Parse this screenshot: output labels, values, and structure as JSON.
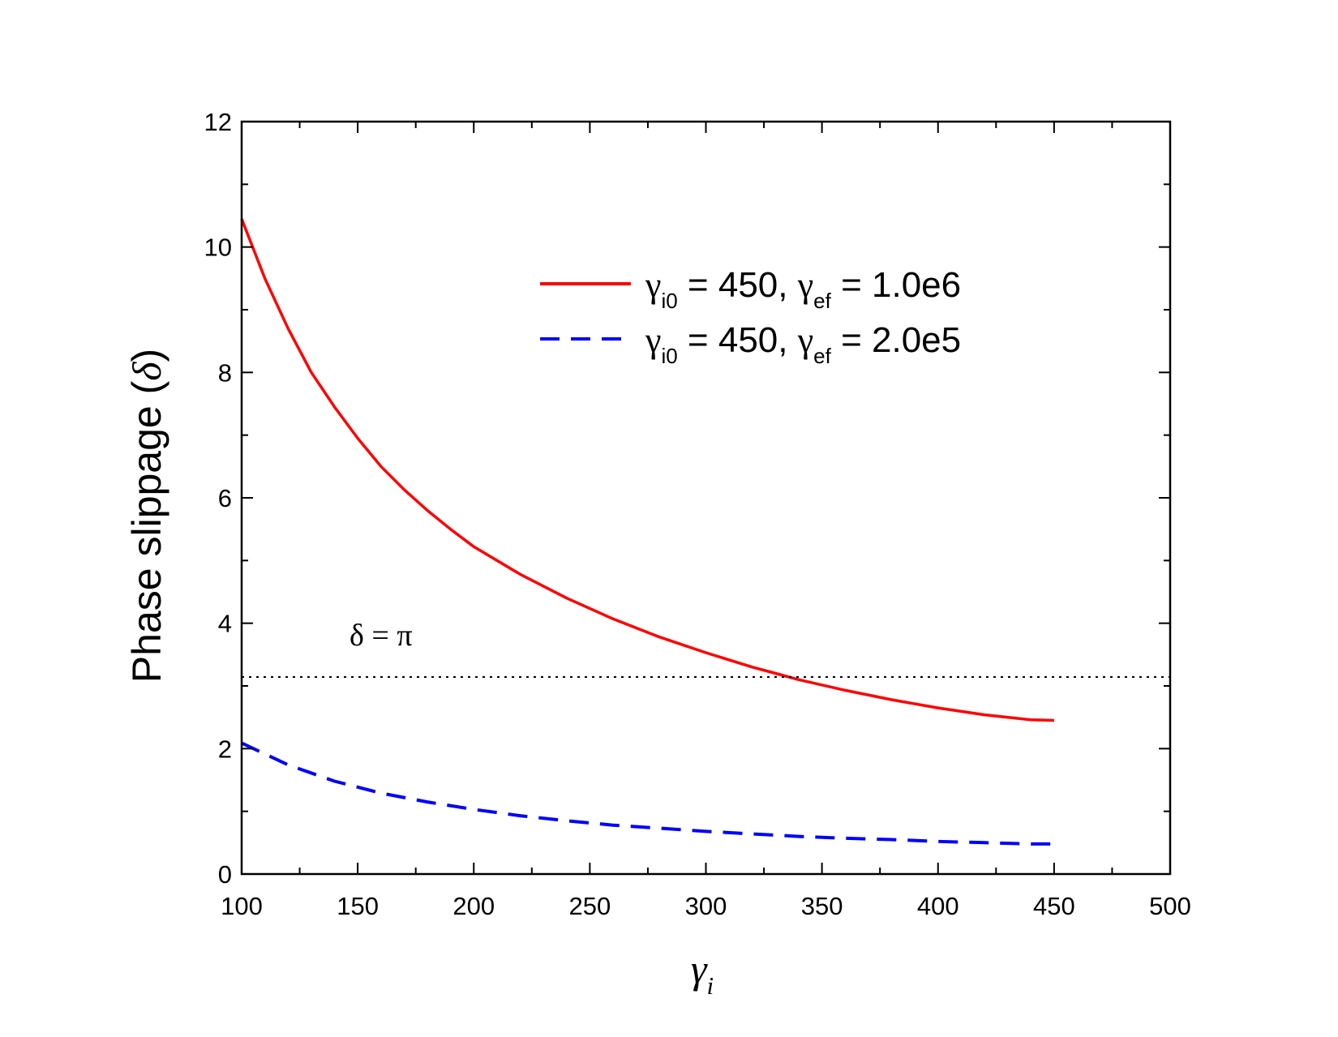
{
  "chart_data": {
    "type": "line",
    "title": "",
    "xlabel": {
      "base": "γ",
      "sub": "i"
    },
    "ylabel": {
      "text": "Phase slippage (",
      "symbol": "δ",
      "close": ")"
    },
    "xlim": [
      100,
      500
    ],
    "ylim": [
      0,
      12
    ],
    "x_major_ticks": [
      100,
      150,
      200,
      250,
      300,
      350,
      400,
      450,
      500
    ],
    "x_tick_labels": [
      "100",
      "150",
      "200",
      "250",
      "300",
      "350",
      "400",
      "450",
      "500"
    ],
    "y_major_ticks": [
      0,
      2,
      4,
      6,
      8,
      10,
      12
    ],
    "y_tick_labels": [
      "0",
      "2",
      "4",
      "6",
      "8",
      "10",
      "12"
    ],
    "grid": false,
    "legend_placement": "top-right",
    "series": [
      {
        "legend": {
          "g1": "γ",
          "s1": "i0",
          "mid": " = 450, ",
          "g2": "γ",
          "s2": "ef",
          "end": " = 1.0e6"
        },
        "color": "#ff0000",
        "style": "solid",
        "x": [
          100,
          110,
          120,
          130,
          140,
          150,
          160,
          170,
          180,
          190,
          200,
          220,
          240,
          260,
          280,
          300,
          320,
          330,
          340,
          360,
          380,
          400,
          420,
          440,
          450
        ],
        "y": [
          10.45,
          9.5,
          8.7,
          8.0,
          7.45,
          6.95,
          6.5,
          6.13,
          5.8,
          5.5,
          5.22,
          4.78,
          4.4,
          4.07,
          3.78,
          3.53,
          3.3,
          3.2,
          3.1,
          2.93,
          2.78,
          2.65,
          2.54,
          2.46,
          2.45
        ]
      },
      {
        "legend": {
          "g1": "γ",
          "s1": "i0",
          "mid": " = 450, ",
          "g2": "γ",
          "s2": "ef",
          "end": " = 2.0e5"
        },
        "color": "#0000ff",
        "style": "dashed",
        "x": [
          100,
          120,
          140,
          160,
          180,
          200,
          220,
          240,
          260,
          280,
          300,
          320,
          340,
          360,
          380,
          400,
          420,
          440,
          450
        ],
        "y": [
          2.09,
          1.74,
          1.48,
          1.29,
          1.15,
          1.03,
          0.93,
          0.85,
          0.78,
          0.73,
          0.68,
          0.64,
          0.6,
          0.57,
          0.55,
          0.52,
          0.5,
          0.48,
          0.48
        ]
      }
    ],
    "reference_line": {
      "y": 3.14159,
      "color": "#000000",
      "style": "dotted",
      "label": "δ = π",
      "label_x": 100,
      "label_y": 3.75
    }
  }
}
